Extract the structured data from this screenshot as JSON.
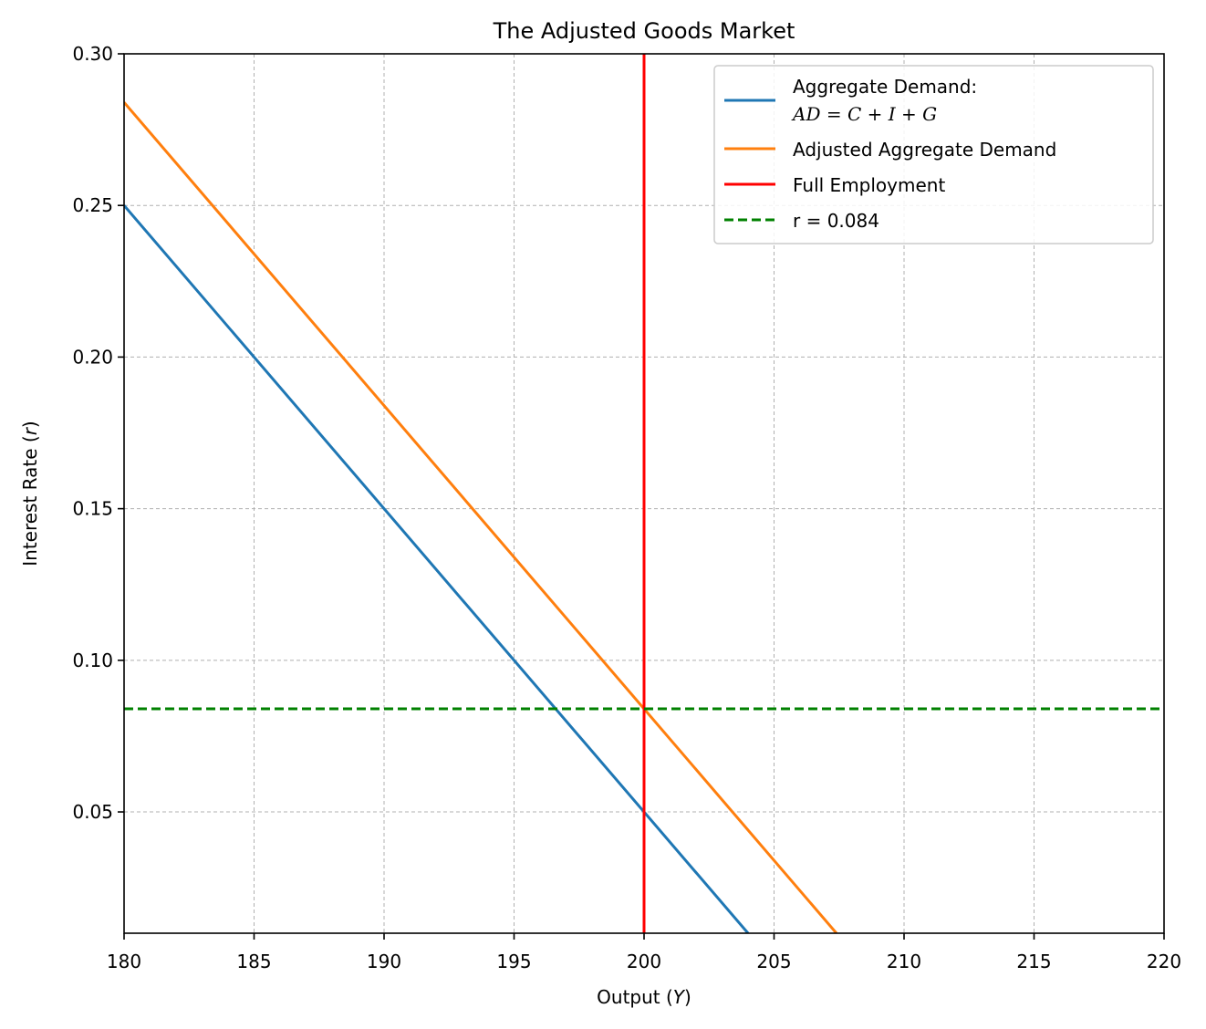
{
  "chart_data": {
    "type": "line",
    "title": "The Adjusted Goods Market",
    "xlabel": {
      "text": "Output (",
      "symbol": "Y",
      "close": ")"
    },
    "ylabel": {
      "text": "Interest Rate (",
      "symbol": "r",
      "close": ")"
    },
    "xlim": [
      180,
      220
    ],
    "ylim": [
      0.01,
      0.3
    ],
    "xticks": [
      180,
      185,
      190,
      195,
      200,
      205,
      210,
      215,
      220
    ],
    "xtick_labels": [
      "180",
      "185",
      "190",
      "195",
      "200",
      "205",
      "210",
      "215",
      "220"
    ],
    "yticks": [
      0.05,
      0.1,
      0.15,
      0.2,
      0.25,
      0.3
    ],
    "ytick_labels": [
      "0.05",
      "0.10",
      "0.15",
      "0.20",
      "0.25",
      "0.30"
    ],
    "grid": true,
    "legend_position": "top-right",
    "series": [
      {
        "name": "Aggregate Demand:",
        "name_line2": "AD = C + I + G",
        "kind": "line",
        "color": "#1f77b4",
        "x": [
          180,
          204
        ],
        "y": [
          0.25,
          0.01
        ]
      },
      {
        "name": "Adjusted Aggregate Demand",
        "kind": "line",
        "color": "#ff7f0e",
        "x": [
          180,
          207.4
        ],
        "y": [
          0.284,
          0.01
        ]
      },
      {
        "name": "Full Employment",
        "kind": "vline",
        "color": "#ff0000",
        "x": 200
      },
      {
        "name": "r = 0.084",
        "kind": "hline",
        "style": "dashed",
        "color": "#008000",
        "y": 0.084
      }
    ]
  }
}
